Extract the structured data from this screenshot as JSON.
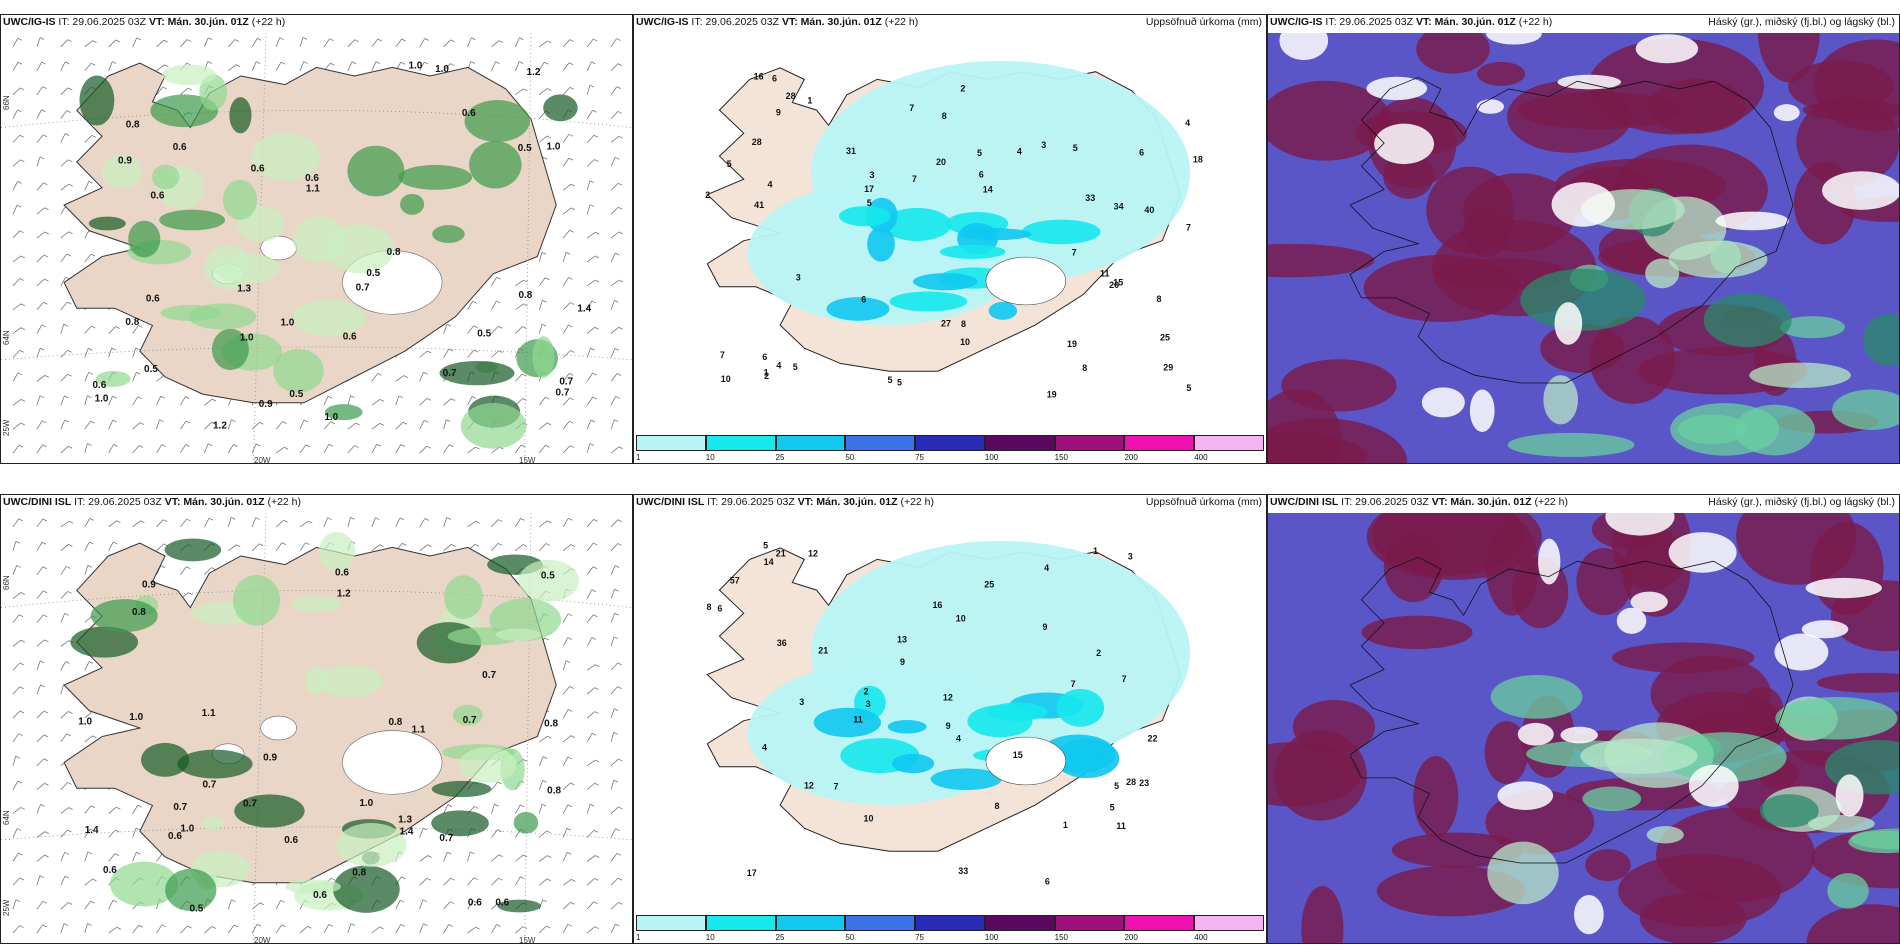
{
  "panels": [
    {
      "id": "p1",
      "model": "UWC/IG-IS",
      "it": "IT: 29.06.2025 03Z",
      "vt_label": "VT:",
      "vt": "Mán. 30.jún. 01Z",
      "lead": "(+22 h)",
      "right": "",
      "kind": "wind"
    },
    {
      "id": "p2",
      "model": "UWC/IG-IS",
      "it": "IT: 29.06.2025 03Z",
      "vt_label": "VT:",
      "vt": "Mán. 30.jún. 01Z",
      "lead": "(+22 h)",
      "right": "Uppsöfnuð úrkoma (mm)",
      "kind": "precip"
    },
    {
      "id": "p3",
      "model": "UWC/IG-IS",
      "it": "IT: 29.06.2025 03Z",
      "vt_label": "VT:",
      "vt": "Mán. 30.jún. 01Z",
      "lead": "(+22 h)",
      "right": "Háský (gr.), miðský (fj.bl.) og lágský (bl.)",
      "kind": "cloud"
    },
    {
      "id": "p4",
      "model": "UWC/DINI ISL",
      "it": "IT: 29.06.2025 03Z",
      "vt_label": "VT:",
      "vt": "Mán. 30.jún. 01Z",
      "lead": "(+22 h)",
      "right": "",
      "kind": "wind"
    },
    {
      "id": "p5",
      "model": "UWC/DINI ISL",
      "it": "IT: 29.06.2025 03Z",
      "vt_label": "VT:",
      "vt": "Mán. 30.jún. 01Z",
      "lead": "(+22 h)",
      "right": "Uppsöfnuð úrkoma (mm)",
      "kind": "precip"
    },
    {
      "id": "p6",
      "model": "UWC/DINI ISL",
      "it": "IT: 29.06.2025 03Z",
      "vt_label": "VT:",
      "vt": "Mán. 30.jún. 01Z",
      "lead": "(+22 h)",
      "right": "Háský (gr.), miðský (fj.bl.) og lágský (bl.)",
      "kind": "cloud"
    }
  ],
  "grid_labels": {
    "lon_20": "20W",
    "lon_15": "15W",
    "lat_66": "66N",
    "lat_64": "64N",
    "lon_25": "25W"
  },
  "colorbar": {
    "ticks": [
      "1",
      "10",
      "25",
      "50",
      "75",
      "100",
      "150",
      "200",
      "400"
    ],
    "colors": [
      "#b8f4f6",
      "#16e8ec",
      "#10c8f0",
      "#3a72e8",
      "#2a2ab8",
      "#5a0860",
      "#a0107a",
      "#ee10b0",
      "#f4b4f4"
    ]
  },
  "wind_labels": {
    "p1": [
      "0.6",
      "0.7",
      "0.5",
      "0.8",
      "0.5",
      "0.6",
      "0.9",
      "0.7",
      "0.5",
      "0.5",
      "0.6",
      "0.7",
      "1.0",
      "1.1",
      "1.4",
      "0.6",
      "1.2",
      "0.5",
      "0.6",
      "0.8",
      "1.0",
      "0.7",
      "1.0",
      "1.0",
      "0.9",
      "0.6",
      "1.0",
      "0.8",
      "1.0",
      "0.6",
      "1.0",
      "1.2",
      "0.6",
      "0.8",
      "1.3"
    ],
    "p4": [
      "0.6",
      "0.7",
      "0.5",
      "0.6",
      "0.7",
      "1.0",
      "0.7",
      "0.6",
      "0.8",
      "0.6",
      "0.9",
      "1.0",
      "1.1",
      "1.2",
      "0.6",
      "0.8",
      "1.0",
      "0.9",
      "0.7",
      "0.8",
      "1.0",
      "0.6",
      "0.8",
      "0.7",
      "1.4",
      "0.6",
      "0.8",
      "1.1",
      "1.4",
      "0.5",
      "0.7",
      "1.3"
    ]
  },
  "precip_labels": {
    "p2": [
      "2",
      "5",
      "8",
      "7",
      "4",
      "5",
      "3",
      "6",
      "5",
      "5",
      "4",
      "7",
      "5",
      "3",
      "8",
      "6",
      "7",
      "9",
      "11",
      "7",
      "6",
      "18",
      "16",
      "17",
      "2",
      "20",
      "25",
      "31",
      "34",
      "29",
      "28",
      "27",
      "19",
      "15",
      "20",
      "14",
      "19",
      "41",
      "40",
      "28",
      "33",
      "7",
      "10",
      "10",
      "6",
      "5",
      "3",
      "8",
      "4",
      "5",
      "2",
      "1",
      "1",
      "4",
      "6",
      "8",
      "5"
    ],
    "p5": [
      "3",
      "6",
      "3",
      "3",
      "5",
      "5",
      "9",
      "12",
      "12",
      "25",
      "15",
      "9",
      "2",
      "4",
      "6",
      "11",
      "7",
      "13",
      "28",
      "17",
      "22",
      "21",
      "14",
      "16",
      "23",
      "21",
      "12",
      "8",
      "10",
      "7",
      "57",
      "33",
      "36",
      "10",
      "4",
      "9",
      "4",
      "7",
      "8",
      "11",
      "5",
      "2",
      "1",
      "1"
    ]
  },
  "map_legend_note": ""
}
